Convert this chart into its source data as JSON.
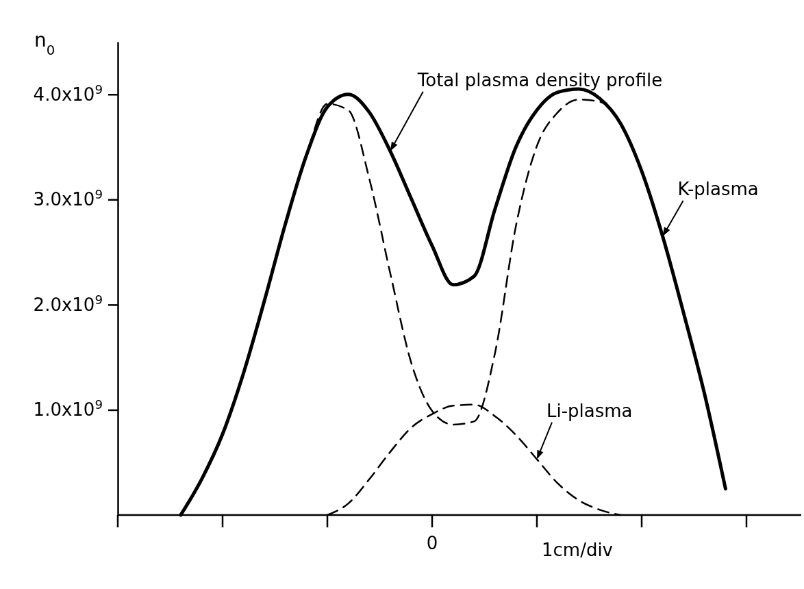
{
  "chart_data": {
    "type": "line",
    "ylabel": "n$_{0}$",
    "xlabel": "1cm/div",
    "categories": [
      null,
      null,
      null,
      null,
      null,
      null,
      null,
      null,
      null,
      null,
      null,
      null,
      null,
      null,
      null,
      "0",
      null,
      null,
      null,
      null,
      null,
      null,
      null,
      null,
      null,
      null,
      null,
      null,
      null,
      null,
      null,
      null,
      null
    ],
    "ylim": [
      0,
      4500000000
    ],
    "yticks": [
      {
        "value": 1000000000,
        "label": "1.0x10$^{9}$"
      },
      {
        "value": 2000000000,
        "label": "2.0x10$^{9}$"
      },
      {
        "value": 3000000000,
        "label": "3.0x10$^{9}$"
      },
      {
        "value": 4000000000,
        "label": "4.0x10$^{9}$"
      }
    ],
    "grid": false,
    "marker": "none",
    "series": [
      {
        "name": "Total plasma density profile",
        "color": "#000000",
        "line_style": "solid",
        "values": [
          null,
          null,
          null,
          0,
          340000000,
          770000000,
          1350000000,
          2040000000,
          2770000000,
          3420000000,
          3880000000,
          4000000000,
          3830000000,
          3460000000,
          3010000000,
          2560000000,
          2190000000,
          2270000000,
          2910000000,
          3500000000,
          3850000000,
          4020000000,
          4050000000,
          3960000000,
          3720000000,
          3270000000,
          2650000000,
          1920000000,
          1150000000,
          250000000,
          null,
          null,
          null
        ]
      },
      {
        "name": "K-plasma",
        "color": "#000000",
        "line_style": "dashed",
        "values": [
          null,
          null,
          null,
          0,
          340000000,
          770000000,
          1350000000,
          2040000000,
          2770000000,
          3420000000,
          3910000000,
          3850000000,
          3200000000,
          2300000000,
          1450000000,
          990000000,
          860000000,
          890000000,
          1540000000,
          2750000000,
          3510000000,
          3830000000,
          3950000000,
          3930000000,
          3720000000,
          3270000000,
          2650000000,
          1920000000,
          1150000000,
          250000000,
          null,
          null,
          null
        ]
      },
      {
        "name": "Li-plasma",
        "color": "#000000",
        "line_style": "dashed",
        "values": [
          null,
          null,
          null,
          null,
          null,
          null,
          null,
          null,
          null,
          null,
          0,
          110000000,
          340000000,
          600000000,
          830000000,
          960000000,
          1040000000,
          1050000000,
          940000000,
          760000000,
          530000000,
          300000000,
          140000000,
          50000000,
          0,
          null,
          null,
          null,
          null,
          null,
          null,
          null,
          null
        ]
      }
    ]
  }
}
